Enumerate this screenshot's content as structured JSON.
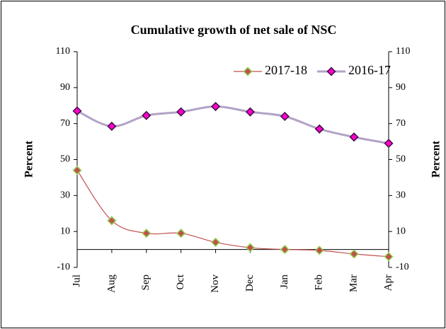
{
  "chart_data": {
    "type": "line",
    "title": "Cumulative growth of net sale of NSC",
    "y_label": "Percent",
    "y2_label": "Percent",
    "categories": [
      "Jul",
      "Aug",
      "Sep",
      "Oct",
      "Nov",
      "Dec",
      "Jan",
      "Feb",
      "Mar",
      "Apr"
    ],
    "series": [
      {
        "name": "2017-18",
        "color": "#c0504d",
        "marker_color": "#c0504d",
        "marker_edge": "#92d050",
        "line_width": 1.2,
        "values": [
          44,
          16,
          9,
          9,
          4,
          1,
          0,
          -0.5,
          -2.5,
          -4
        ]
      },
      {
        "name": "2016-17",
        "color": "#b3a2c7",
        "marker_color": "#ff00cc",
        "marker_edge": "#3a1040",
        "line_width": 3,
        "values": [
          77,
          68.5,
          74.5,
          76.5,
          79.5,
          76.5,
          74,
          67,
          62.5,
          59
        ]
      }
    ],
    "ylim": [
      -10,
      110
    ],
    "yticks": [
      -10,
      10,
      30,
      50,
      70,
      90,
      110
    ],
    "y2lim": [
      -10,
      110
    ],
    "y2ticks": [
      -10,
      10,
      30,
      50,
      70,
      90,
      110
    ],
    "legend": "top-right"
  }
}
